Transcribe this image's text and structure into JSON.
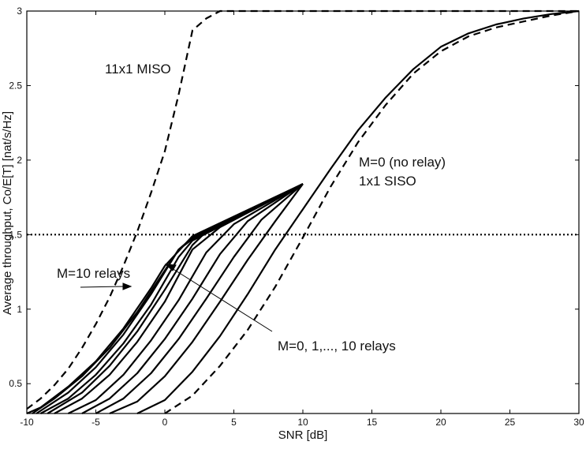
{
  "chart_data": {
    "type": "line",
    "title": "",
    "xlabel": "SNR [dB]",
    "ylabel": "Average throughput, Co/E[T] [nat/s/Hz]",
    "xlim": [
      -10,
      30
    ],
    "ylim": [
      0.3,
      3
    ],
    "xticks": [
      -10,
      -5,
      0,
      5,
      10,
      15,
      20,
      25,
      30
    ],
    "yticks": [
      0.5,
      1,
      1.5,
      2,
      2.5,
      3
    ],
    "ytick_labels": [
      "0.5",
      "1",
      "1.5",
      "2",
      "2.5",
      "3"
    ],
    "grid": false,
    "reference_line": {
      "y": 1.5,
      "style": "dotted"
    },
    "series": [
      {
        "name": "11x1 MISO",
        "style": "dashed",
        "points": [
          [
            -10,
            0.33
          ],
          [
            -9,
            0.4
          ],
          [
            -8,
            0.49
          ],
          [
            -7,
            0.6
          ],
          [
            -6,
            0.74
          ],
          [
            -5,
            0.9
          ],
          [
            -4,
            1.08
          ],
          [
            -3,
            1.29
          ],
          [
            -2,
            1.52
          ],
          [
            -1,
            1.78
          ],
          [
            0,
            2.06
          ],
          [
            1,
            2.44
          ],
          [
            2,
            2.87
          ],
          [
            3,
            2.95
          ],
          [
            4,
            3.0
          ],
          [
            30,
            3.0
          ]
        ]
      },
      {
        "name": "M=0 (no relay) 1x1 SISO",
        "style": "dashed",
        "points": [
          [
            0,
            0.3
          ],
          [
            2,
            0.42
          ],
          [
            4,
            0.62
          ],
          [
            6,
            0.86
          ],
          [
            8,
            1.15
          ],
          [
            10,
            1.48
          ],
          [
            12,
            1.82
          ],
          [
            14,
            2.12
          ],
          [
            16,
            2.37
          ],
          [
            18,
            2.58
          ],
          [
            20,
            2.73
          ],
          [
            22,
            2.83
          ],
          [
            24,
            2.89
          ],
          [
            26,
            2.93
          ],
          [
            28,
            2.97
          ],
          [
            30,
            3.0
          ]
        ]
      },
      {
        "name": "M=0",
        "style": "solid",
        "points": [
          [
            -2,
            0.3
          ],
          [
            0,
            0.39
          ],
          [
            2,
            0.58
          ],
          [
            4,
            0.82
          ],
          [
            6,
            1.1
          ],
          [
            8,
            1.4
          ],
          [
            10,
            1.67
          ],
          [
            12,
            1.94
          ],
          [
            14,
            2.2
          ],
          [
            16,
            2.42
          ],
          [
            18,
            2.61
          ],
          [
            20,
            2.76
          ],
          [
            22,
            2.85
          ],
          [
            24,
            2.91
          ],
          [
            26,
            2.95
          ],
          [
            28,
            2.98
          ],
          [
            30,
            3.0
          ]
        ]
      },
      {
        "name": "M=1",
        "style": "solid",
        "points": [
          [
            -4,
            0.3
          ],
          [
            -2,
            0.38
          ],
          [
            0,
            0.55
          ],
          [
            2,
            0.78
          ],
          [
            4,
            1.05
          ],
          [
            6,
            1.33
          ],
          [
            8,
            1.59
          ],
          [
            10,
            1.84
          ]
        ]
      },
      {
        "name": "M=2",
        "style": "solid",
        "points": [
          [
            -5,
            0.3
          ],
          [
            -3,
            0.4
          ],
          [
            -1,
            0.57
          ],
          [
            1,
            0.8
          ],
          [
            3,
            1.07
          ],
          [
            5,
            1.35
          ],
          [
            7,
            1.6
          ],
          [
            10,
            1.84
          ]
        ]
      },
      {
        "name": "M=3",
        "style": "solid",
        "points": [
          [
            -6,
            0.3
          ],
          [
            -4,
            0.4
          ],
          [
            -2,
            0.57
          ],
          [
            0,
            0.8
          ],
          [
            2,
            1.07
          ],
          [
            4,
            1.37
          ],
          [
            6,
            1.59
          ],
          [
            10,
            1.84
          ]
        ]
      },
      {
        "name": "M=4",
        "style": "solid",
        "points": [
          [
            -7,
            0.3
          ],
          [
            -5,
            0.39
          ],
          [
            -3,
            0.56
          ],
          [
            -1,
            0.79
          ],
          [
            1,
            1.06
          ],
          [
            3,
            1.38
          ],
          [
            5,
            1.57
          ],
          [
            10,
            1.84
          ]
        ]
      },
      {
        "name": "M=5",
        "style": "solid",
        "points": [
          [
            -8,
            0.3
          ],
          [
            -6,
            0.4
          ],
          [
            -4,
            0.56
          ],
          [
            -2,
            0.78
          ],
          [
            0,
            1.05
          ],
          [
            2,
            1.4
          ],
          [
            4,
            1.55
          ],
          [
            10,
            1.84
          ]
        ]
      },
      {
        "name": "M=6",
        "style": "solid",
        "points": [
          [
            -8.5,
            0.3
          ],
          [
            -6,
            0.44
          ],
          [
            -4,
            0.62
          ],
          [
            -2,
            0.85
          ],
          [
            0,
            1.13
          ],
          [
            2,
            1.43
          ],
          [
            3,
            1.52
          ],
          [
            10,
            1.84
          ]
        ]
      },
      {
        "name": "M=7",
        "style": "solid",
        "points": [
          [
            -9,
            0.3
          ],
          [
            -7,
            0.4
          ],
          [
            -5,
            0.56
          ],
          [
            -3,
            0.77
          ],
          [
            -1,
            1.03
          ],
          [
            1,
            1.35
          ],
          [
            2,
            1.46
          ],
          [
            10,
            1.84
          ]
        ]
      },
      {
        "name": "M=8",
        "style": "solid",
        "points": [
          [
            -9.3,
            0.3
          ],
          [
            -7,
            0.44
          ],
          [
            -5,
            0.61
          ],
          [
            -3,
            0.83
          ],
          [
            -1,
            1.1
          ],
          [
            1,
            1.4
          ],
          [
            2,
            1.47
          ],
          [
            10,
            1.84
          ]
        ]
      },
      {
        "name": "M=9",
        "style": "solid",
        "points": [
          [
            -9.6,
            0.3
          ],
          [
            -8,
            0.4
          ],
          [
            -6,
            0.55
          ],
          [
            -4,
            0.74
          ],
          [
            -2,
            0.98
          ],
          [
            0,
            1.26
          ],
          [
            1,
            1.4
          ],
          [
            2,
            1.48
          ],
          [
            10,
            1.84
          ]
        ]
      },
      {
        "name": "M=10",
        "style": "solid",
        "points": [
          [
            -10,
            0.3
          ],
          [
            -9,
            0.34
          ],
          [
            -7,
            0.48
          ],
          [
            -5,
            0.65
          ],
          [
            -3,
            0.87
          ],
          [
            -1,
            1.14
          ],
          [
            0,
            1.29
          ],
          [
            2,
            1.49
          ],
          [
            10,
            1.84
          ]
        ]
      }
    ],
    "annotations": {
      "miso_label": "11x1 MISO",
      "siso_line1": "M=0 (no relay)",
      "siso_line2": "1x1 SISO",
      "m10_label": "M=10 relays",
      "range_label": "M=0, 1,..., 10 relays"
    }
  }
}
